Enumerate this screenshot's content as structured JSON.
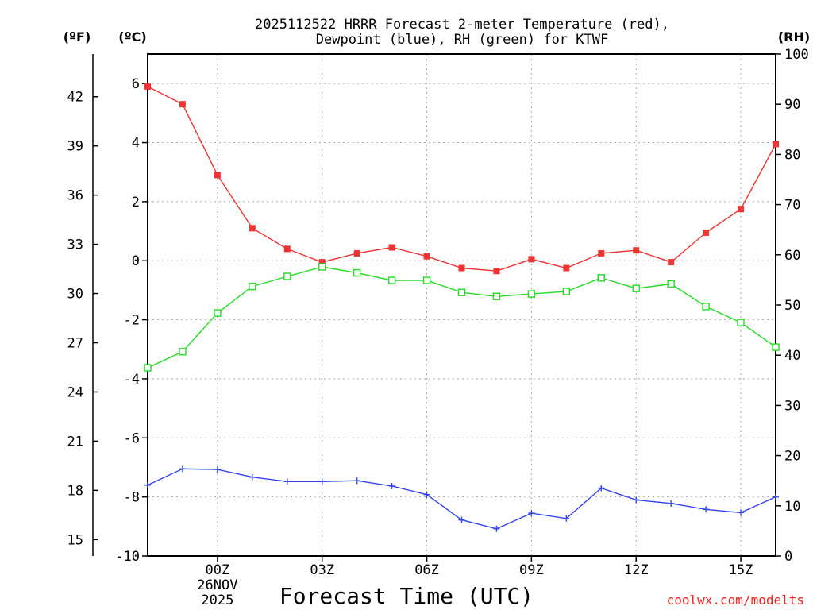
{
  "title_line1": "2025112522 HRRR Forecast 2-meter Temperature (red),",
  "title_line2": "Dewpoint (blue), RH (green) for KTWF",
  "units": {
    "fahrenheit": "(ºF)",
    "celsius": "(ºC)",
    "rh": "(RH)"
  },
  "credit": "coolwx.com/modelts",
  "colors": {
    "temperature": "#ee3333",
    "dewpoint": "#3344ee",
    "rh": "#22dd22",
    "credit": "#ee2222"
  },
  "chart_data": {
    "type": "line",
    "title": "2025112522 HRRR Forecast 2-meter Temperature (red), Dewpoint (blue), RH (green) for KTWF",
    "xlabel": "Forecast Time (UTC)",
    "x": [
      "22Z",
      "23Z",
      "00Z",
      "01Z",
      "02Z",
      "03Z",
      "04Z",
      "05Z",
      "06Z",
      "07Z",
      "08Z",
      "09Z",
      "10Z",
      "11Z",
      "12Z",
      "13Z",
      "14Z",
      "15Z",
      "16Z"
    ],
    "x_ticks": [
      {
        "label": "00Z",
        "sub1": "26NOV",
        "sub2": "2025",
        "index": 2
      },
      {
        "label": "03Z",
        "index": 5
      },
      {
        "label": "06Z",
        "index": 8
      },
      {
        "label": "09Z",
        "index": 11
      },
      {
        "label": "12Z",
        "index": 14
      },
      {
        "label": "15Z",
        "index": 17
      }
    ],
    "ylim_c": [
      -10,
      7.0
    ],
    "y_ticks_c": [
      {
        "v": -10,
        "label": "-10"
      },
      {
        "v": -8,
        "label": "-8"
      },
      {
        "v": -6,
        "label": "-6"
      },
      {
        "v": -4,
        "label": "-4"
      },
      {
        "v": -2,
        "label": "-2"
      },
      {
        "v": 0,
        "label": "0"
      },
      {
        "v": 2,
        "label": "2"
      },
      {
        "v": 4,
        "label": "4"
      },
      {
        "v": 6,
        "label": "6"
      }
    ],
    "y_ticks_f": [
      {
        "v": 15,
        "label": "15"
      },
      {
        "v": 18,
        "label": "18"
      },
      {
        "v": 21,
        "label": "21"
      },
      {
        "v": 24,
        "label": "24"
      },
      {
        "v": 27,
        "label": "27"
      },
      {
        "v": 30,
        "label": "30"
      },
      {
        "v": 33,
        "label": "33"
      },
      {
        "v": 36,
        "label": "36"
      },
      {
        "v": 39,
        "label": "39"
      },
      {
        "v": 42,
        "label": "42"
      }
    ],
    "ylim_rh": [
      0,
      100
    ],
    "y_ticks_rh": [
      {
        "v": 0,
        "label": "0"
      },
      {
        "v": 10,
        "label": "10"
      },
      {
        "v": 20,
        "label": "20"
      },
      {
        "v": 30,
        "label": "30"
      },
      {
        "v": 40,
        "label": "40"
      },
      {
        "v": 50,
        "label": "50"
      },
      {
        "v": 60,
        "label": "60"
      },
      {
        "v": 70,
        "label": "70"
      },
      {
        "v": 80,
        "label": "80"
      },
      {
        "v": 90,
        "label": "90"
      },
      {
        "v": 100,
        "label": "100"
      }
    ],
    "grid": true,
    "series": [
      {
        "name": "Temperature",
        "axis": "c",
        "marker": "filled-square",
        "values": [
          5.9,
          5.3,
          2.9,
          1.1,
          0.4,
          -0.05,
          0.25,
          0.45,
          0.15,
          -0.25,
          -0.35,
          0.05,
          -0.25,
          0.25,
          0.35,
          -0.05,
          0.95,
          1.75,
          3.95
        ]
      },
      {
        "name": "Dewpoint",
        "axis": "c",
        "marker": "plus",
        "values": [
          -7.6,
          -7.05,
          -7.07,
          -7.33,
          -7.48,
          -7.48,
          -7.45,
          -7.63,
          -7.92,
          -8.78,
          -9.08,
          -8.55,
          -8.73,
          -7.7,
          -8.1,
          -8.22,
          -8.42,
          -8.53,
          -8.0
        ]
      },
      {
        "name": "RH",
        "axis": "rh",
        "marker": "open-square",
        "values": [
          37.5,
          40.7,
          48.4,
          53.7,
          55.7,
          57.6,
          56.4,
          54.9,
          54.9,
          52.5,
          51.7,
          52.2,
          52.7,
          55.4,
          53.3,
          54.2,
          49.7,
          46.5,
          41.6
        ]
      }
    ]
  }
}
